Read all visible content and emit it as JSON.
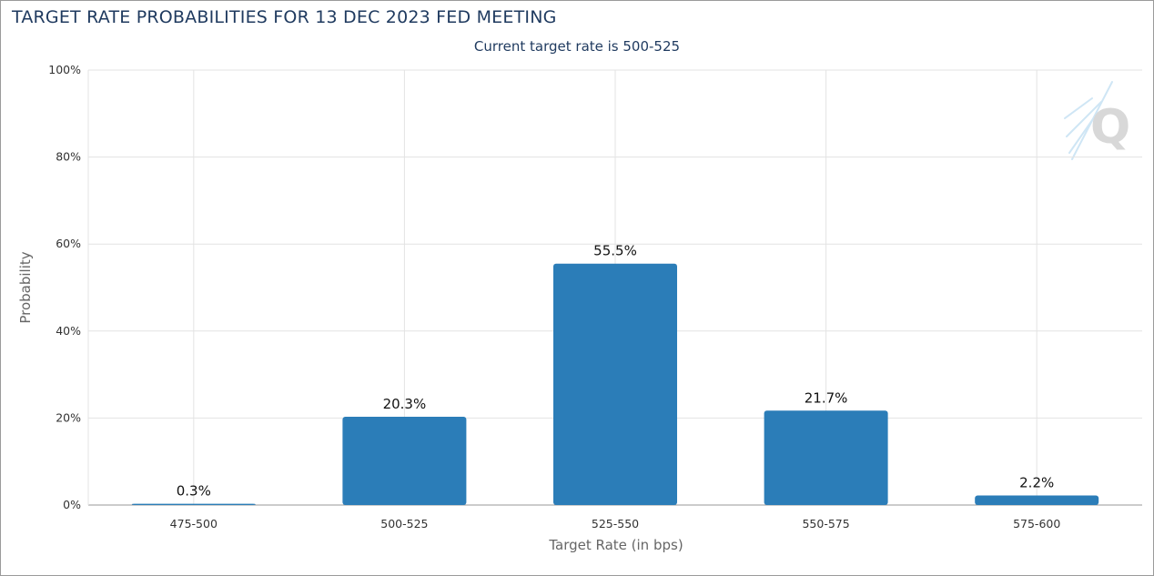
{
  "chart_data": {
    "type": "bar",
    "title": "TARGET RATE PROBABILITIES FOR 13 DEC 2023 FED MEETING",
    "subtitle": "Current target rate is 500-525",
    "xlabel": "Target Rate (in bps)",
    "ylabel": "Probability",
    "categories": [
      "475-500",
      "500-525",
      "525-550",
      "550-575",
      "575-600"
    ],
    "values": [
      0.3,
      20.3,
      55.5,
      21.7,
      2.2
    ],
    "data_labels": [
      "0.3%",
      "20.3%",
      "55.5%",
      "21.7%",
      "2.2%"
    ],
    "ylim": [
      0,
      100
    ],
    "yticks": [
      0,
      20,
      40,
      60,
      80,
      100
    ],
    "ytick_labels": [
      "0%",
      "20%",
      "40%",
      "60%",
      "80%",
      "100%"
    ],
    "grid": true,
    "bar_color": "#2b7db8",
    "title_color": "#1f3a5f"
  }
}
